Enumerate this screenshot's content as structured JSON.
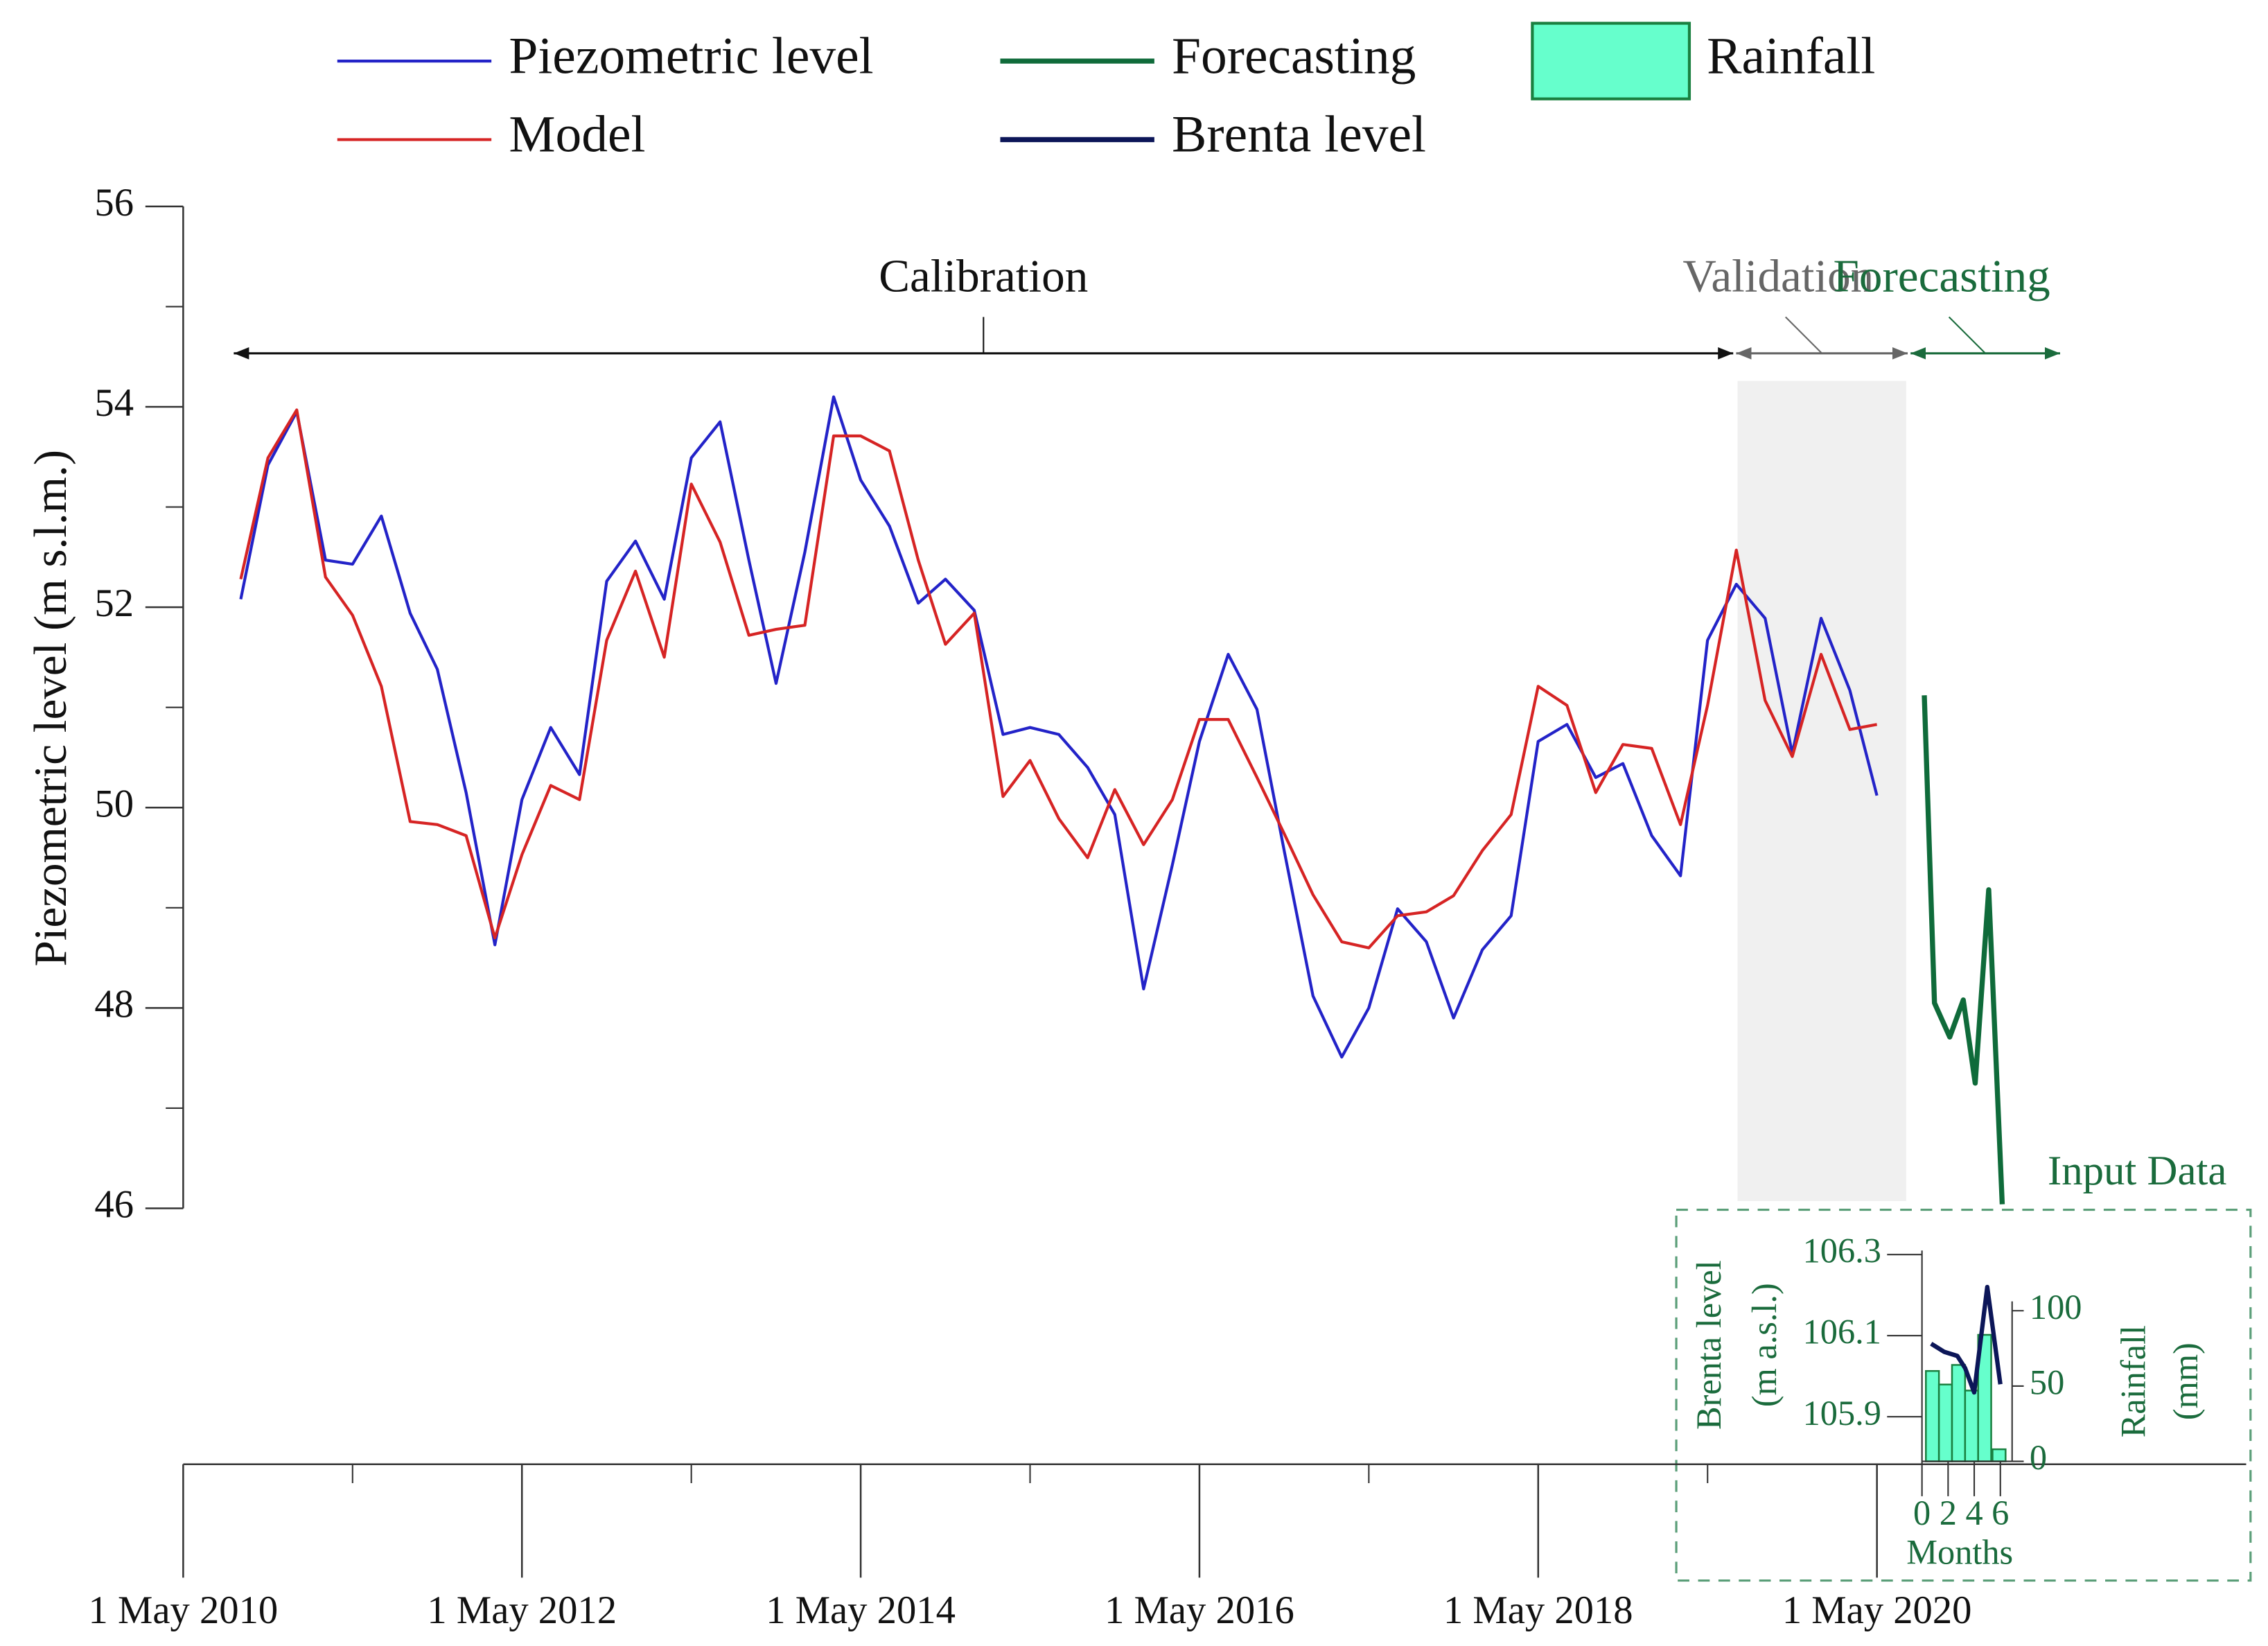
{
  "chart_data": [
    {
      "type": "line",
      "ylabel": "Piezometric level (m s.l.m.)",
      "xlim": [
        2010.33,
        2022.51
      ],
      "ylim": [
        46,
        56
      ],
      "yticks": [
        46,
        48,
        50,
        52,
        54,
        56
      ],
      "yticks_minor": [
        47,
        49,
        51,
        53,
        55
      ],
      "xticks": [
        {
          "value": 2010.33,
          "label": "1 May 2010"
        },
        {
          "value": 2012.33,
          "label": "1 May 2012"
        },
        {
          "value": 2014.33,
          "label": "1 May 2014"
        },
        {
          "value": 2016.33,
          "label": "1 May 2016"
        },
        {
          "value": 2018.33,
          "label": "1 May 2018"
        },
        {
          "value": 2020.33,
          "label": "1 May 2020"
        }
      ],
      "xticks_minor": [
        2011.33,
        2013.33,
        2015.33,
        2017.33,
        2019.33
      ],
      "periods": [
        {
          "label": "Calibration",
          "range": [
            2010.62,
            2019.49
          ],
          "color": "#111111"
        },
        {
          "label": "Validation",
          "range": [
            2019.49,
            2020.52
          ],
          "color": "#666666",
          "shade": "#f0f0f0"
        },
        {
          "label": "Forecasting",
          "range": [
            2020.52,
            2021.42
          ],
          "color": "#1a6b3c"
        }
      ],
      "x": [
        2010.67,
        2010.83,
        2011,
        2011.17,
        2011.33,
        2011.5,
        2011.67,
        2011.83,
        2012,
        2012.17,
        2012.33,
        2012.5,
        2012.67,
        2012.83,
        2013,
        2013.17,
        2013.33,
        2013.5,
        2013.67,
        2013.83,
        2014,
        2014.17,
        2014.33,
        2014.5,
        2014.67,
        2014.83,
        2015,
        2015.17,
        2015.33,
        2015.5,
        2015.67,
        2015.83,
        2016,
        2016.17,
        2016.33,
        2016.5,
        2016.67,
        2016.83,
        2017,
        2017.17,
        2017.33,
        2017.5,
        2017.67,
        2017.83,
        2018,
        2018.17,
        2018.33,
        2018.5,
        2018.67,
        2018.83,
        2019,
        2019.17,
        2019.33,
        2019.5,
        2019.67,
        2019.83,
        2020,
        2020.17,
        2020.33
      ],
      "series": [
        {
          "name": "Piezometric level",
          "color": "#2323c8",
          "values": [
            52.08,
            53.42,
            53.95,
            52.47,
            52.43,
            52.91,
            51.94,
            51.38,
            50.15,
            48.63,
            50.08,
            50.8,
            50.33,
            52.26,
            52.66,
            52.08,
            53.49,
            53.85,
            52.47,
            51.24,
            52.55,
            54.1,
            53.27,
            52.81,
            52.04,
            52.28,
            51.97,
            50.73,
            50.8,
            50.73,
            50.4,
            49.93,
            48.19,
            49.43,
            50.66,
            51.53,
            50.98,
            49.57,
            48.12,
            47.51,
            48,
            48.99,
            48.66,
            47.9,
            48.58,
            48.92,
            50.66,
            50.83,
            50.3,
            50.44,
            49.72,
            49.32,
            51.67,
            52.23,
            51.89,
            50.54,
            51.89,
            51.17,
            50.12
          ]
        },
        {
          "name": "Model",
          "color": "#d62424",
          "values": [
            52.28,
            53.49,
            53.97,
            52.3,
            51.92,
            51.21,
            49.86,
            49.83,
            49.72,
            48.7,
            49.53,
            50.22,
            50.08,
            51.67,
            52.36,
            51.5,
            53.23,
            52.65,
            51.72,
            51.78,
            51.82,
            53.71,
            53.71,
            53.56,
            52.47,
            51.63,
            51.94,
            50.11,
            50.47,
            49.89,
            49.5,
            50.18,
            49.63,
            50.08,
            50.88,
            50.88,
            50.3,
            49.74,
            49.13,
            48.66,
            48.6,
            48.92,
            48.96,
            49.12,
            49.57,
            49.93,
            51.21,
            51.02,
            50.15,
            50.63,
            50.59,
            49.83,
            51.02,
            52.57,
            51.07,
            50.51,
            51.53,
            50.78,
            50.83
          ]
        },
        {
          "name": "Forecasting",
          "color": "#0f6b3a",
          "x": [
            2020.61,
            2020.67,
            2020.76,
            2020.84,
            2020.91,
            2020.99,
            2021.07
          ],
          "values": [
            51.12,
            48.05,
            47.71,
            48.08,
            47.25,
            49.18,
            46.04
          ]
        }
      ]
    },
    {
      "type": "bar_line",
      "title": "Input Data",
      "xlabel": "Months",
      "ylabel": "Brenta level",
      "ylabel_unit": "(m a.s.l.)",
      "y2label": "Rainfall",
      "y2label_unit": "(mm)",
      "xlim": [
        0,
        6.9
      ],
      "ylim": [
        105.79,
        106.31
      ],
      "y2lim": [
        0,
        140
      ],
      "xticks": [
        0,
        2,
        4,
        6
      ],
      "yticks": [
        105.9,
        106.1,
        106.3
      ],
      "y2ticks": [
        0,
        50,
        100
      ],
      "series": [
        {
          "name": "Brenta level",
          "color": "#0c1658",
          "x": [
            0.7,
            1.7,
            2.7,
            3.3,
            4,
            5,
            6
          ],
          "values": [
            106.08,
            106.06,
            106.05,
            106.02,
            105.96,
            106.22,
            105.98
          ]
        },
        {
          "name": "Rainfall",
          "color": "#66ffcc",
          "edge": "#1a8040",
          "axis": "y2",
          "x": [
            0.8,
            1.8,
            2.8,
            3.8,
            4.8,
            5.9
          ],
          "values": [
            60,
            51,
            64,
            47,
            84,
            8
          ]
        }
      ]
    }
  ]
}
